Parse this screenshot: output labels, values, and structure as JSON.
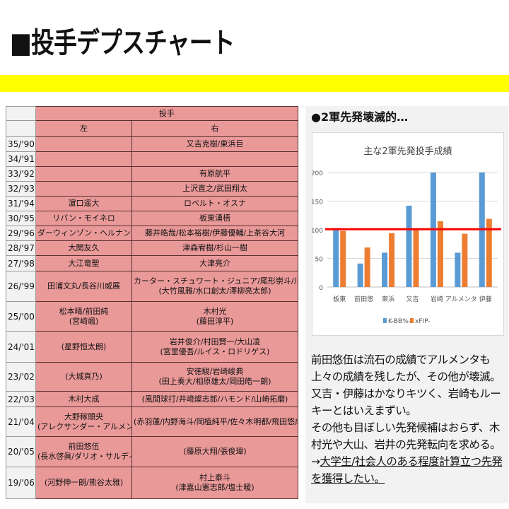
{
  "title": "■投手デプスチャート",
  "table": {
    "header": "投手",
    "left_label": "左",
    "right_label": "右",
    "rows": [
      {
        "year": "35/'90",
        "left": [],
        "right": [
          "又吉克樹/東浜巨"
        ]
      },
      {
        "year": "34/'91",
        "left": [],
        "right": []
      },
      {
        "year": "33/'92",
        "left": [],
        "right": [
          "有原航平"
        ]
      },
      {
        "year": "32/'93",
        "left": [],
        "right": [
          "上沢直之/武田翔太"
        ]
      },
      {
        "year": "31/'94",
        "left": [
          "濵口遥大"
        ],
        "right": [
          "ロベルト・オスナ"
        ]
      },
      {
        "year": "30/'95",
        "left": [
          "リバン・モイネロ"
        ],
        "right": [
          "板東湧梧"
        ]
      },
      {
        "year": "29/'96",
        "left": [
          "ダーウィンゾン・ヘルナンデス"
        ],
        "right": [
          "藤井皓哉/松本裕樹/伊藤優輔/上茶谷大河"
        ]
      },
      {
        "year": "28/'97",
        "left": [
          "大関友久"
        ],
        "right": [
          "津森宥樹/杉山一樹"
        ]
      },
      {
        "year": "27/'98",
        "left": [
          "大江竜聖"
        ],
        "right": [
          "大津亮介"
        ]
      },
      {
        "year": "26/'99",
        "left": [
          "田浦文丸/長谷川威展"
        ],
        "right": [
          "カーター・スチュワート・ジュニア/尾形崇斗/川口冬弥",
          "(大竹風雅/水口創太/澤柳亮太郎)"
        ]
      },
      {
        "year": "25/'00",
        "left": [
          "松本晴/前田純",
          "(宮﨑颯)"
        ],
        "right": [
          "木村光",
          "(藤田淳平)"
        ]
      },
      {
        "year": "24/'01",
        "left": [
          "(星野恒太朗)"
        ],
        "right": [
          "岩井俊介/村田賢一/大山凌",
          "(宮里優吾/ルイス・ロドリゲス)"
        ]
      },
      {
        "year": "23/'02",
        "left": [
          "(大城真乃)"
        ],
        "right": [
          "安徳駿/岩崎峻典",
          "(田上奏大/相原雄太/岡田皓一朗)"
        ]
      },
      {
        "year": "22/'03",
        "left": [
          "木村大成"
        ],
        "right": [
          "(風間球打/井﨑燦志郎/ハモンド/山崎拓磨)"
        ]
      },
      {
        "year": "21/'04",
        "left": [
          "大野稼頭央",
          "(アレクサンダー・アルメンタ)"
        ],
        "right": [
          "(赤羽蓮/内野海斗/岡植純平/佐々木明都/飛田悠成)"
        ]
      },
      {
        "year": "20/'05",
        "left": [
          "前田悠伍",
          "(長水啓眞/ダリオ・サルディ)"
        ],
        "right": [
          "(藤原大翔/張俊瑋)"
        ]
      },
      {
        "year": "19/'06",
        "left": [
          "(河野伸一朗/熊谷太雅)"
        ],
        "right": [
          "村上泰斗",
          "(津嘉山憲志郎/塩士暖)"
        ]
      }
    ]
  },
  "section_heading": "●2軍先発壊滅的…",
  "chart_data": {
    "type": "bar",
    "title": "主な2軍先発投手成績",
    "categories": [
      "板東",
      "前田悠",
      "東浜",
      "又吉",
      "岩崎",
      "アルメンタ",
      "伊藤"
    ],
    "series": [
      {
        "name": "K-BB%-",
        "color": "#5b9bd5",
        "values": [
          103,
          41,
          60,
          142,
          200,
          60,
          200
        ]
      },
      {
        "name": "xFIP-",
        "color": "#ed7d31",
        "values": [
          98,
          69,
          94,
          101,
          115,
          93,
          119
        ]
      }
    ],
    "ylim": [
      0,
      200
    ],
    "yticks": [
      0,
      50,
      100,
      150,
      200
    ],
    "reference_line": {
      "value": 101,
      "color": "#ff0000"
    },
    "grid": true,
    "legend": "bottom"
  },
  "note": {
    "lines": [
      "前田悠伍は流石の成績でアルメンタも上々の成績を残したが、その他が壊滅。又吉・伊藤はかなりキツく、岩崎もルーキーとはいえまずい。",
      "その他も目ぼしい先発候補はおらず、木村光や大山、岩井の先発転向を求める。"
    ],
    "arrow": "→",
    "conclusion": "大学生/社会人のある程度計算立つ先発を獲得したい。"
  }
}
